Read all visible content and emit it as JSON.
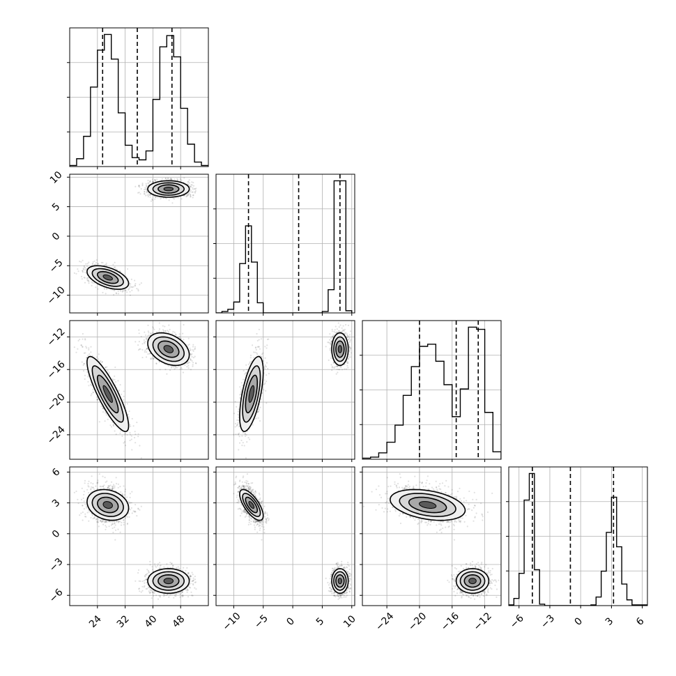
{
  "chart_data": {
    "type": "corner",
    "parameters": 4,
    "grid": true,
    "axis_ticks": [
      [
        24,
        32,
        40,
        48
      ],
      [
        -10,
        -5,
        0,
        5,
        10
      ],
      [
        -24,
        -20,
        -16,
        -12
      ],
      [
        -6,
        -3,
        0,
        3,
        6
      ]
    ],
    "axis_ranges": [
      [
        16,
        56
      ],
      [
        -13,
        10.5
      ],
      [
        -27,
        -10
      ],
      [
        -7,
        6.5
      ]
    ],
    "quantile_lines": [
      [
        25.5,
        35.5,
        45.5
      ],
      [
        -7.5,
        1.0,
        8.0
      ],
      [
        -20.0,
        -15.5,
        -12.8
      ],
      [
        -4.7,
        -1.0,
        3.2
      ]
    ],
    "marginals": [
      {
        "bin_edges": [
          16,
          18,
          20,
          22,
          24,
          26,
          28,
          30,
          32,
          34,
          36,
          38,
          40,
          42,
          44,
          46,
          48,
          50,
          52,
          54,
          56
        ],
        "counts": [
          1,
          7,
          27,
          71,
          104,
          118,
          96,
          48,
          19,
          8,
          6,
          14,
          60,
          107,
          117,
          98,
          52,
          20,
          4,
          1
        ]
      },
      {
        "bin_edges": [
          -13,
          -12,
          -11,
          -10,
          -9,
          -8,
          -7,
          -6,
          -5,
          -4,
          -3,
          -2,
          -1,
          0,
          1,
          2,
          3,
          4,
          5,
          6,
          7,
          8,
          9,
          10
        ],
        "counts": [
          0,
          2,
          5,
          15,
          68,
          120,
          70,
          14,
          0,
          0,
          0,
          0,
          0,
          0,
          0,
          0,
          0,
          0,
          2,
          32,
          182,
          182,
          3
        ]
      },
      {
        "bin_edges": [
          -27,
          -26,
          -25,
          -24,
          -23,
          -22,
          -21,
          -20,
          -19,
          -18,
          -17,
          -16,
          -15,
          -14,
          -13,
          -12,
          -11,
          -10
        ],
        "counts": [
          1,
          2,
          6,
          16,
          32,
          60,
          87,
          106,
          108,
          92,
          70,
          40,
          66,
          124,
          122,
          44,
          7
        ]
      },
      {
        "bin_edges": [
          -7,
          -6.5,
          -6,
          -5.5,
          -5,
          -4.5,
          -4,
          -3.5,
          -3,
          -2.5,
          -2,
          -1.5,
          -1,
          -0.5,
          0,
          0.5,
          1,
          1.5,
          2,
          2.5,
          3,
          3.5,
          4,
          4.5,
          5,
          5.5,
          6,
          6.5
        ],
        "counts": [
          1,
          10,
          45,
          147,
          184,
          50,
          2,
          0,
          0,
          0,
          0,
          0,
          0,
          0,
          0,
          0,
          1,
          12,
          48,
          102,
          151,
          82,
          30,
          8,
          1,
          1,
          1
        ]
      }
    ],
    "clusters": [
      {
        "mean": [
          27,
          -7,
          -19,
          2.8
        ],
        "sd": [
          3,
          1,
          2.3,
          0.75
        ],
        "weight": 0.5
      },
      {
        "mean": [
          44.5,
          8,
          -13.5,
          -4.6
        ],
        "sd": [
          3,
          0.7,
          1,
          0.6
        ],
        "weight": 0.5
      }
    ]
  }
}
